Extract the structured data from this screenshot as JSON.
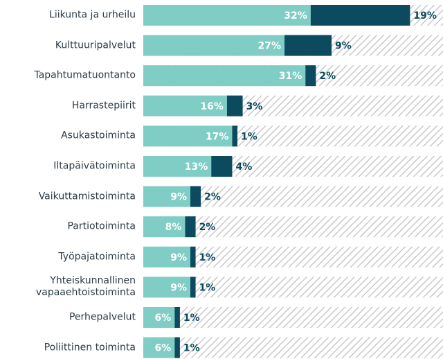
{
  "chart_data": {
    "type": "stacked-bar-horizontal",
    "categories": [
      "Liikunta ja urheilu",
      "Kulttuuripalvelut",
      "Tapahtumatuontanto",
      "Harrastepiirit",
      "Asukastoiminta",
      "Iltapäivätoiminta",
      "Vaikuttamistoiminta",
      "Partiotoiminta",
      "Työpajatoiminta",
      "Yhteiskunnallinen vapaaehtoistoiminta",
      "Perhepalvelut",
      "Poliittinen toiminta"
    ],
    "series": [
      {
        "color": "#7fcdc5",
        "values": [
          32,
          27,
          31,
          16,
          17,
          13,
          9,
          8,
          9,
          9,
          6,
          6
        ],
        "value_labels": [
          "32%",
          "27%",
          "31%",
          "16%",
          "17%",
          "13%",
          "9%",
          "8%",
          "9%",
          "9%",
          "6%",
          "6%"
        ]
      },
      {
        "color": "#0b4a5f",
        "values": [
          19,
          9,
          2,
          3,
          1,
          4,
          2,
          2,
          1,
          1,
          1,
          1
        ],
        "value_labels": [
          "19%",
          "9%",
          "2%",
          "3%",
          "1%",
          "4%",
          "2%",
          "2%",
          "1%",
          "1%",
          "1%",
          "1%"
        ]
      }
    ],
    "xlim": [
      0,
      57.3
    ]
  }
}
